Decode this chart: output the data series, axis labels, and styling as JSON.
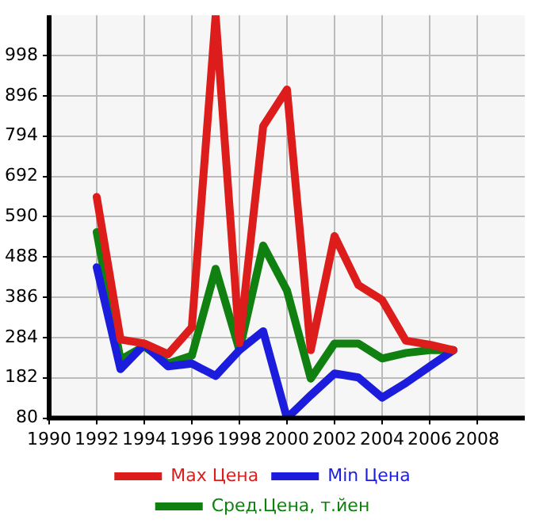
{
  "chart_data": {
    "type": "line",
    "x": [
      1992,
      1993,
      1994,
      1995,
      1996,
      1997,
      1998,
      1999,
      2000,
      2001,
      2002,
      2003,
      2004,
      2005,
      2006,
      2007
    ],
    "series": [
      {
        "name": "Max Цена",
        "color": "#dd1c1c",
        "values": [
          640,
          279,
          269,
          242,
          310,
          1098,
          270,
          819,
          912,
          252,
          541,
          417,
          379,
          276,
          266,
          252
        ]
      },
      {
        "name": "Min Цена",
        "color": "#1c1cdd",
        "values": [
          462,
          204,
          266,
          211,
          218,
          187,
          252,
          300,
          80,
          138,
          193,
          183,
          132,
          169,
          211,
          252
        ]
      },
      {
        "name": "Сред.Цена, т.йен",
        "color": "#108010",
        "values": [
          551,
          228,
          262,
          218,
          238,
          458,
          252,
          517,
          403,
          180,
          269,
          269,
          231,
          245,
          252,
          252
        ]
      }
    ],
    "xlim": [
      1990,
      2010
    ],
    "xticks": [
      1990,
      1992,
      1994,
      1996,
      1998,
      2000,
      2002,
      2004,
      2006,
      2008
    ],
    "ylim": [
      80,
      1100
    ],
    "yticks": [
      80,
      182,
      284,
      386,
      488,
      590,
      692,
      794,
      896,
      998
    ],
    "grid": true,
    "legend": "bottom",
    "marker": "none",
    "line_style": "solid"
  }
}
